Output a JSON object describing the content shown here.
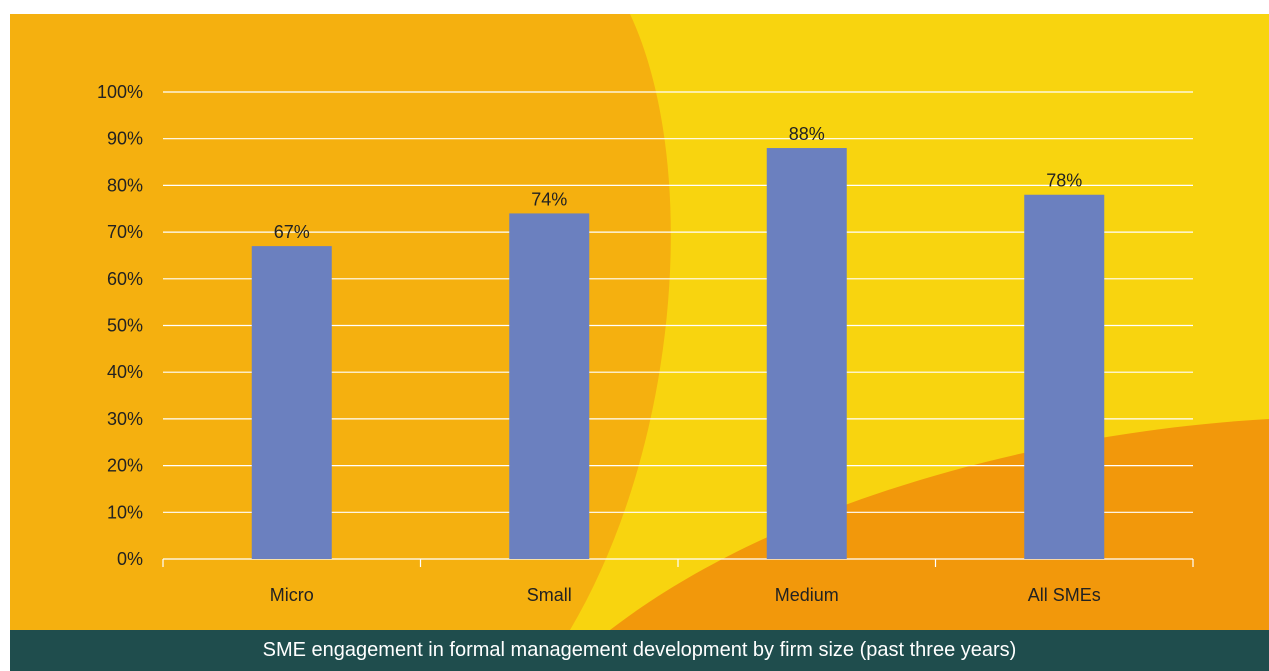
{
  "caption": "SME engagement in formal management development by firm size (past three years)",
  "colors": {
    "background_orange": "#f5b00f",
    "background_yellow": "#f8d40f",
    "background_dark_orange": "#f2980b",
    "bar": "#6b80bf",
    "gridline": "#ffffff",
    "caption_bar": "#1f4d4d"
  },
  "chart_data": {
    "type": "bar",
    "categories": [
      "Micro",
      "Small",
      "Medium",
      "All SMEs"
    ],
    "values": [
      67,
      74,
      88,
      78
    ],
    "value_labels": [
      "67%",
      "74%",
      "88%",
      "78%"
    ],
    "ylim": [
      0,
      100
    ],
    "y_ticks": [
      0,
      10,
      20,
      30,
      40,
      50,
      60,
      70,
      80,
      90,
      100
    ],
    "y_tick_labels": [
      "0%",
      "10%",
      "20%",
      "30%",
      "40%",
      "50%",
      "60%",
      "70%",
      "80%",
      "90%",
      "100%"
    ],
    "grid": true,
    "legend": "none",
    "title": "",
    "xlabel": "",
    "ylabel": ""
  }
}
